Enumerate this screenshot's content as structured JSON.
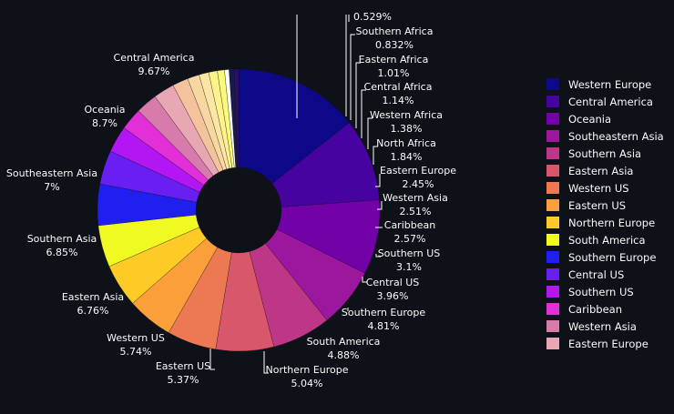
{
  "chart_data": {
    "type": "pie",
    "hole": true,
    "legend_position": "right",
    "slices": [
      {
        "label": "Western Europe",
        "value": 14.6,
        "percent_text": "",
        "color": "#0d0887"
      },
      {
        "label": "Central America",
        "value": 9.67,
        "percent_text": "9.67%",
        "color": "#46039f"
      },
      {
        "label": "Oceania",
        "value": 8.7,
        "percent_text": "8.7%",
        "color": "#7201a8"
      },
      {
        "label": "Southeastern Asia",
        "value": 7,
        "percent_text": "7%",
        "color": "#9c179e"
      },
      {
        "label": "Southern Asia",
        "value": 6.85,
        "percent_text": "6.85%",
        "color": "#bd3786"
      },
      {
        "label": "Eastern Asia",
        "value": 6.76,
        "percent_text": "6.76%",
        "color": "#d8576b"
      },
      {
        "label": "Western US",
        "value": 5.74,
        "percent_text": "5.74%",
        "color": "#ed7953"
      },
      {
        "label": "Eastern US",
        "value": 5.37,
        "percent_text": "5.37%",
        "color": "#fb9f3a"
      },
      {
        "label": "Northern Europe",
        "value": 5.04,
        "percent_text": "5.04%",
        "color": "#fdca26"
      },
      {
        "label": "South America",
        "value": 4.88,
        "percent_text": "4.88%",
        "color": "#f0f921"
      },
      {
        "label": "Southern Europe",
        "value": 4.81,
        "percent_text": "4.81%",
        "color": "#1f1ff0"
      },
      {
        "label": "Central US",
        "value": 3.96,
        "percent_text": "3.96%",
        "color": "#6a1ff2"
      },
      {
        "label": "Southern US",
        "value": 3.1,
        "percent_text": "3.1%",
        "color": "#b216f2"
      },
      {
        "label": "Caribbean",
        "value": 2.57,
        "percent_text": "2.57%",
        "color": "#e22fd8"
      },
      {
        "label": "Western Asia",
        "value": 2.51,
        "percent_text": "2.51%",
        "color": "#d77aac"
      },
      {
        "label": "Eastern Europe",
        "value": 2.45,
        "percent_text": "2.45%",
        "color": "#e8a8b3"
      },
      {
        "label": "North Africa",
        "value": 1.84,
        "percent_text": "1.84%",
        "color": "#f4c39e"
      },
      {
        "label": "Western Africa",
        "value": 1.38,
        "percent_text": "1.38%",
        "color": "#f9d7a0"
      },
      {
        "label": "Central Africa",
        "value": 1.14,
        "percent_text": "1.14%",
        "color": "#fbe7a3"
      },
      {
        "label": "Eastern Africa",
        "value": 1.01,
        "percent_text": "1.01%",
        "color": "#fdf38a"
      },
      {
        "label": "Southern Africa",
        "value": 0.832,
        "percent_text": "0.832%",
        "color": "#fbfb77"
      },
      {
        "label": "",
        "value": 0.529,
        "percent_text": "0.529%",
        "color": "#ffffff"
      },
      {
        "label": "",
        "value": 0.6,
        "percent_text": "",
        "color": "#1a1a4a"
      },
      {
        "label": "",
        "value": 0.5,
        "percent_text": "",
        "color": "#2b1060"
      }
    ],
    "legend_entries": [
      "Western Europe",
      "Central America",
      "Oceania",
      "Southeastern Asia",
      "Southern Asia",
      "Eastern Asia",
      "Western US",
      "Eastern US",
      "Northern Europe",
      "South America",
      "Southern Europe",
      "Central US",
      "Southern US",
      "Caribbean",
      "Western Asia",
      "Eastern Europe"
    ]
  }
}
